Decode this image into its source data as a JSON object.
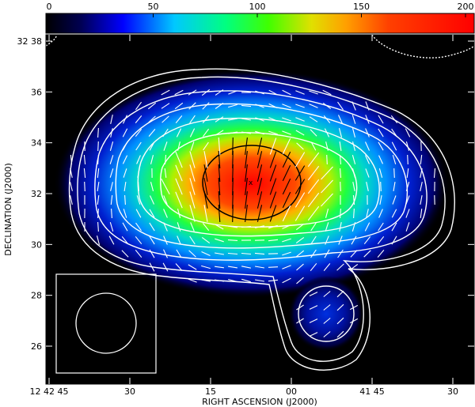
{
  "chart_data": {
    "type": "heatmap",
    "colorbar": {
      "ticks": [
        "0",
        "50",
        "100",
        "150",
        "200"
      ],
      "values": [
        0,
        50,
        100,
        150,
        200
      ],
      "range": [
        0,
        200
      ]
    },
    "xlabel": "RIGHT ASCENSION (J2000)",
    "ylabel": "DECLINATION (J2000)",
    "x_ticks": [
      {
        "label": "12 42 45",
        "value": 45
      },
      {
        "label": "30",
        "value": 30
      },
      {
        "label": "15",
        "value": 15
      },
      {
        "label": "00",
        "value": 0
      },
      {
        "label": "41 45",
        "value": -15
      },
      {
        "label": "30",
        "value": -30
      }
    ],
    "y_ticks": [
      {
        "label": "32 38",
        "value": 38
      },
      {
        "label": "36",
        "value": 36
      },
      {
        "label": "34",
        "value": 34
      },
      {
        "label": "32",
        "value": 32
      },
      {
        "label": "30",
        "value": 30
      },
      {
        "label": "28",
        "value": 28
      },
      {
        "label": "26",
        "value": 26
      }
    ],
    "source_center": {
      "ra_offset_s": 8,
      "dec_arcmin": 32.4
    },
    "peak_value": 200,
    "contour_levels": 8,
    "beam_inset": true,
    "vectors": "polarization"
  }
}
